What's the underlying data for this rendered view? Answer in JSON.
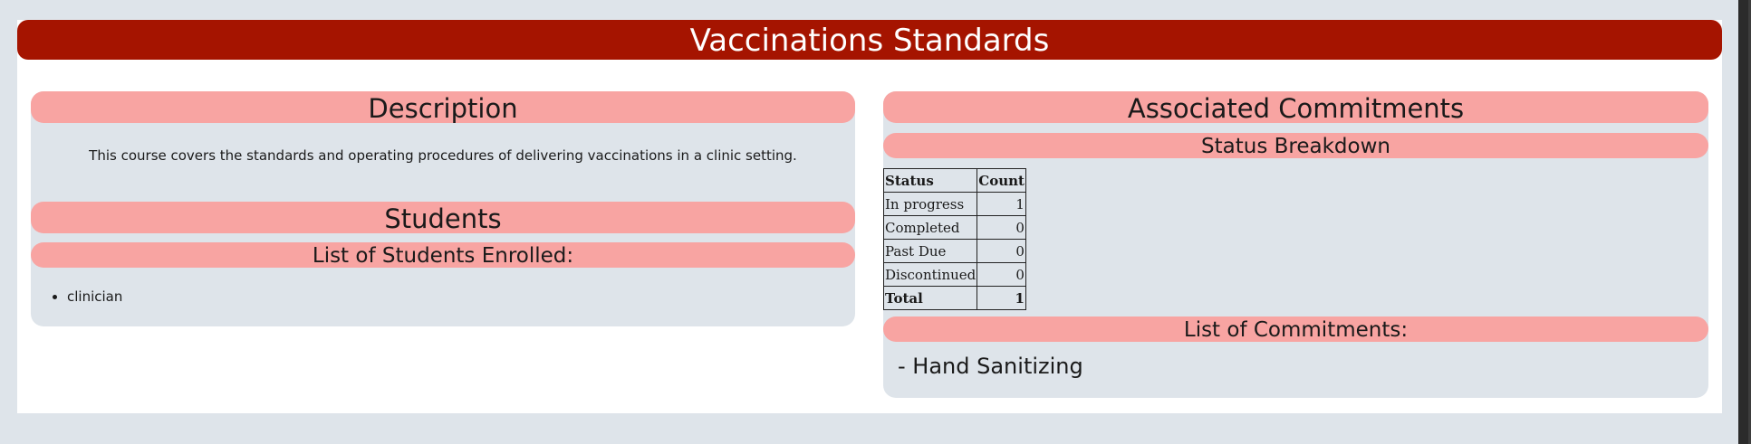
{
  "page_title": "Vaccinations Standards",
  "left": {
    "description_heading": "Description",
    "description_text": "This course covers the standards and operating procedures of delivering vaccinations in a clinic setting.",
    "students_heading": "Students",
    "students_subheading": "List of Students Enrolled:",
    "students": [
      "clinician"
    ]
  },
  "right": {
    "commitments_heading": "Associated Commitments",
    "status_subheading": "Status Breakdown",
    "table": {
      "headers": [
        "Status",
        "Count"
      ],
      "rows": [
        {
          "status": "In progress",
          "count": "1"
        },
        {
          "status": "Completed",
          "count": "0"
        },
        {
          "status": "Past Due",
          "count": "0"
        },
        {
          "status": "Discontinued",
          "count": "0"
        }
      ],
      "total": {
        "label": "Total",
        "count": "1"
      }
    },
    "commitments_subheading": "List of Commitments:",
    "commitments": [
      "- Hand Sanitizing"
    ]
  },
  "colors": {
    "title_bar": "#a51400",
    "pill": "#f8a4a2",
    "panel": "#dee4ea"
  }
}
